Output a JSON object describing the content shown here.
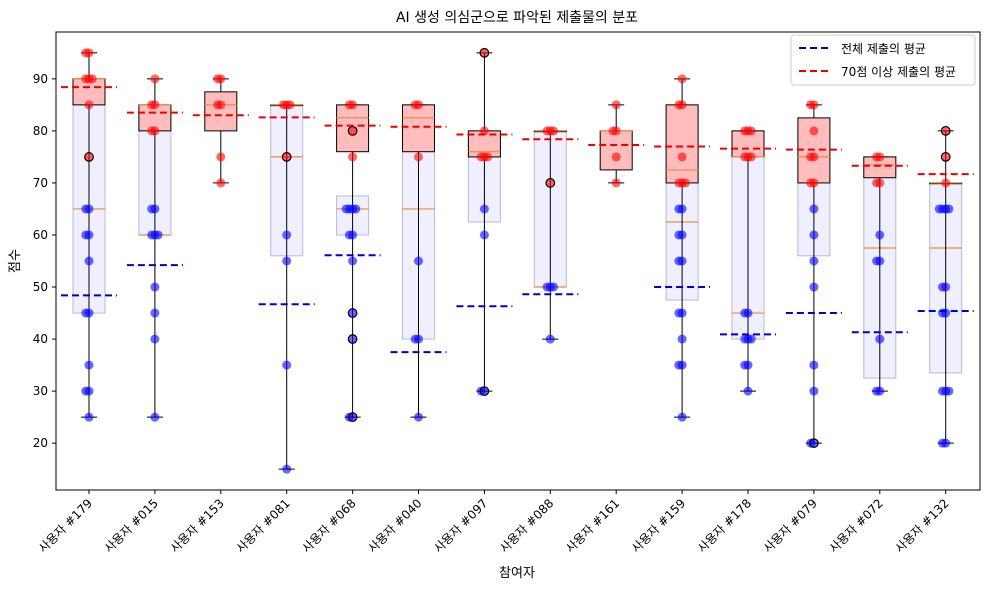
{
  "chart_data": {
    "type": "box",
    "title": "AI 생성 의심군으로 파악된 제출물의 분포",
    "xlabel": "참여자",
    "ylabel": "점수",
    "ylim": [
      11,
      99
    ],
    "yticks": [
      20,
      30,
      40,
      50,
      60,
      70,
      80,
      90
    ],
    "grid": false,
    "legend": {
      "position": "top-right",
      "entries": [
        {
          "label": "전체 제출의 평균",
          "color": "#0000cc",
          "style": "dashed"
        },
        {
          "label": "70점 이상 제출의 평균",
          "color": "#ee0000",
          "style": "dashed"
        }
      ]
    },
    "colors": {
      "all_box_fill": "#efefff",
      "all_box_edge": "#b8b8d8",
      "high_box_fill": "#ffbcbc",
      "high_box_edge": "#000000",
      "median": "#f08a3c",
      "low_points": "#0000ff",
      "high_points": "#ff0000",
      "whisker": "#000000"
    },
    "categories": [
      "사용자 #179",
      "사용자 #015",
      "사용자 #153",
      "사용자 #081",
      "사용자 #068",
      "사용자 #040",
      "사용자 #097",
      "사용자 #088",
      "사용자 #161",
      "사용자 #159",
      "사용자 #178",
      "사용자 #079",
      "사용자 #072",
      "사용자 #132"
    ],
    "series": [
      {
        "name": "전체 제출의 평균",
        "values": [
          48.4,
          54.2,
          null,
          46.7,
          56.1,
          37.5,
          46.3,
          48.6,
          null,
          50.0,
          40.9,
          45.0,
          41.3,
          45.4
        ]
      },
      {
        "name": "70점 이상 제출의 평균",
        "values": [
          88.4,
          83.5,
          83.0,
          82.6,
          81.0,
          80.8,
          79.3,
          78.4,
          77.3,
          77.0,
          76.6,
          76.4,
          73.3,
          71.7
        ]
      }
    ],
    "boxes_all": [
      {
        "q1": 45,
        "median": 65,
        "q3": 85
      },
      {
        "q1": 60,
        "median": 60,
        "q3": 85
      },
      null,
      {
        "q1": 56,
        "median": 75,
        "q3": 85
      },
      {
        "q1": 60,
        "median": 65,
        "q3": 67.5
      },
      {
        "q1": 40,
        "median": 65,
        "q3": 85
      },
      {
        "q1": 62.5,
        "median": 75,
        "q3": 80
      },
      {
        "q1": 50,
        "median": 50,
        "q3": 80
      },
      null,
      {
        "q1": 47.5,
        "median": 62.5,
        "q3": 85
      },
      {
        "q1": 40,
        "median": 45,
        "q3": 80
      },
      {
        "q1": 56,
        "median": 75,
        "q3": 80
      },
      {
        "q1": 32.5,
        "median": 57.5,
        "q3": 75
      },
      {
        "q1": 33.5,
        "median": 57.5,
        "q3": 70
      }
    ],
    "boxes_high": [
      {
        "q1": 85,
        "median": 90,
        "q3": 90,
        "whislo": 25,
        "whishi": 95,
        "fliers": [
          75
        ]
      },
      {
        "q1": 80,
        "median": 85,
        "q3": 85,
        "whislo": 25,
        "whishi": 90,
        "fliers": []
      },
      {
        "q1": 80,
        "median": 85,
        "q3": 87.5,
        "whislo": 70,
        "whishi": 90,
        "fliers": []
      },
      {
        "q1": 85,
        "median": 85,
        "q3": 85,
        "whislo": 15,
        "whishi": 85,
        "fliers": [
          75
        ]
      },
      {
        "q1": 76,
        "median": 82.5,
        "q3": 85,
        "whislo": 25,
        "whishi": 85,
        "fliers": [
          80,
          45,
          40,
          25
        ]
      },
      {
        "q1": 76,
        "median": 82.5,
        "q3": 85,
        "whislo": 25,
        "whishi": 85,
        "fliers": []
      },
      {
        "q1": 75,
        "median": 76,
        "q3": 80,
        "whislo": 30,
        "whishi": 95,
        "fliers": [
          95,
          30
        ]
      },
      {
        "q1": 80,
        "median": 80,
        "q3": 80,
        "whislo": 40,
        "whishi": 80,
        "fliers": [
          70
        ]
      },
      {
        "q1": 72.5,
        "median": 80,
        "q3": 80,
        "whislo": 70,
        "whishi": 85,
        "fliers": []
      },
      {
        "q1": 70,
        "median": 72.5,
        "q3": 85,
        "whislo": 25,
        "whishi": 90,
        "fliers": []
      },
      {
        "q1": 75,
        "median": 75,
        "q3": 80,
        "whislo": 30,
        "whishi": 80,
        "fliers": []
      },
      {
        "q1": 70,
        "median": 75,
        "q3": 82.5,
        "whislo": 20,
        "whishi": 85,
        "fliers": [
          20
        ]
      },
      {
        "q1": 71,
        "median": 73.5,
        "q3": 75,
        "whislo": 30,
        "whishi": 75,
        "fliers": []
      },
      {
        "q1": 70,
        "median": 70,
        "q3": 70,
        "whislo": 20,
        "whishi": 80,
        "fliers": [
          80,
          75
        ]
      }
    ],
    "points": [
      [
        95,
        95,
        90,
        90,
        90,
        85,
        75,
        65,
        65,
        60,
        60,
        55,
        45,
        45,
        35,
        30,
        30,
        25
      ],
      [
        90,
        85,
        85,
        80,
        80,
        65,
        65,
        60,
        60,
        60,
        50,
        45,
        40,
        25
      ],
      [
        90,
        90,
        85,
        85,
        75,
        70
      ],
      [
        85,
        85,
        85,
        75,
        60,
        55,
        35,
        15
      ],
      [
        85,
        85,
        80,
        75,
        65,
        65,
        65,
        65,
        60,
        60,
        55,
        45,
        40,
        25,
        25
      ],
      [
        85,
        85,
        75,
        55,
        40,
        40,
        25
      ],
      [
        95,
        80,
        75,
        75,
        75,
        65,
        60,
        30,
        30
      ],
      [
        80,
        80,
        80,
        70,
        50,
        50,
        50,
        40
      ],
      [
        85,
        80,
        80,
        75,
        70
      ],
      [
        90,
        85,
        85,
        75,
        70,
        70,
        70,
        65,
        65,
        60,
        60,
        55,
        55,
        45,
        45,
        40,
        35,
        35,
        25
      ],
      [
        80,
        80,
        80,
        75,
        75,
        75,
        45,
        45,
        40,
        40,
        40,
        35,
        35,
        30
      ],
      [
        85,
        85,
        80,
        75,
        75,
        70,
        70,
        65,
        60,
        55,
        50,
        35,
        30,
        20,
        20
      ],
      [
        75,
        75,
        70,
        70,
        60,
        55,
        55,
        40,
        30,
        30
      ],
      [
        80,
        75,
        70,
        65,
        65,
        65,
        65,
        50,
        50,
        45,
        45,
        30,
        30,
        30,
        20,
        20
      ]
    ]
  }
}
